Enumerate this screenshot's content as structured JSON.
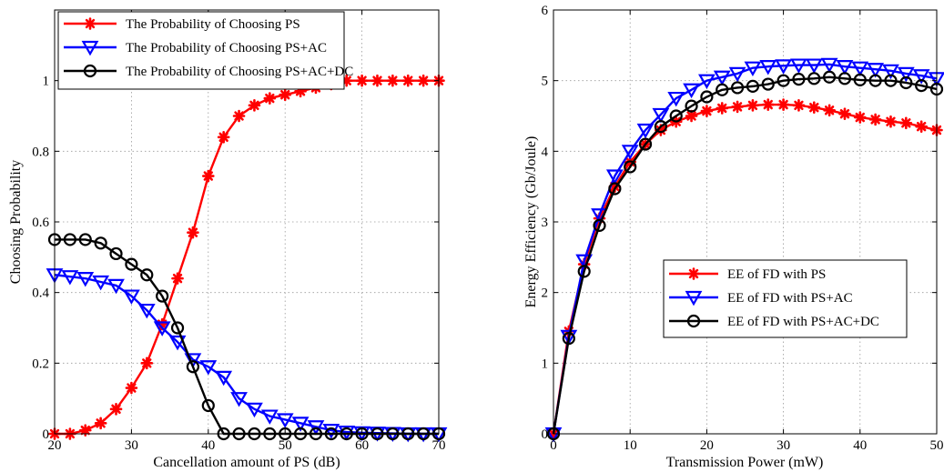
{
  "chart_data": [
    {
      "type": "line",
      "title": "",
      "xlabel": "Cancellation amount of PS (dB)",
      "ylabel": "Choosing Probability",
      "xlim": [
        20,
        70
      ],
      "ylim": [
        0,
        1.2
      ],
      "xticks": [
        20,
        30,
        40,
        50,
        60,
        70
      ],
      "xtick_labels": [
        "20",
        "30",
        "40",
        "50",
        "60",
        "70"
      ],
      "yticks": [
        0,
        0.2,
        0.4,
        0.6,
        0.8,
        1
      ],
      "ytick_labels": [
        "0",
        "0.2",
        "0.4",
        "0.6",
        "0.8",
        "1"
      ],
      "grid": true,
      "legend_position": "top-left",
      "x": [
        20,
        22,
        24,
        26,
        28,
        30,
        32,
        34,
        36,
        38,
        40,
        42,
        44,
        46,
        48,
        50,
        52,
        54,
        56,
        58,
        60,
        62,
        64,
        66,
        68,
        70
      ],
      "series": [
        {
          "name": "The Probability of Choosing PS",
          "color": "#ff0000",
          "marker": "asterisk",
          "values": [
            0,
            0,
            0.01,
            0.03,
            0.07,
            0.13,
            0.2,
            0.31,
            0.44,
            0.57,
            0.73,
            0.84,
            0.9,
            0.93,
            0.95,
            0.96,
            0.97,
            0.98,
            0.99,
            1,
            1,
            1,
            1,
            1,
            1,
            1
          ]
        },
        {
          "name": "The Probability of Choosing PS+AC",
          "color": "#0000ff",
          "marker": "triangle-down",
          "values": [
            0.45,
            0.445,
            0.44,
            0.43,
            0.42,
            0.39,
            0.35,
            0.3,
            0.26,
            0.21,
            0.19,
            0.16,
            0.1,
            0.07,
            0.05,
            0.04,
            0.03,
            0.02,
            0.01,
            0.005,
            0.003,
            0.002,
            0.001,
            0,
            0,
            0
          ]
        },
        {
          "name": "The Probability of Choosing PS+AC+DC",
          "color": "#000000",
          "marker": "circle",
          "values": [
            0.55,
            0.55,
            0.55,
            0.54,
            0.51,
            0.48,
            0.45,
            0.39,
            0.3,
            0.19,
            0.08,
            0,
            0,
            0,
            0,
            0,
            0,
            0,
            0,
            0,
            0,
            0,
            0,
            0,
            0,
            0
          ]
        }
      ]
    },
    {
      "type": "line",
      "title": "",
      "xlabel": "Transmission Power (mW)",
      "ylabel": "Energy Efficiency (Gb/Joule)",
      "xlim": [
        0,
        50
      ],
      "ylim": [
        0,
        6
      ],
      "xticks": [
        0,
        10,
        20,
        30,
        40,
        50
      ],
      "xtick_labels": [
        "0",
        "10",
        "20",
        "30",
        "40",
        "50"
      ],
      "yticks": [
        0,
        1,
        2,
        3,
        4,
        5,
        6
      ],
      "ytick_labels": [
        "0",
        "1",
        "2",
        "3",
        "4",
        "5",
        "6"
      ],
      "grid": true,
      "legend_position": "center-right",
      "x": [
        0,
        2,
        4,
        6,
        8,
        10,
        12,
        14,
        16,
        18,
        20,
        22,
        24,
        26,
        28,
        30,
        32,
        34,
        36,
        38,
        40,
        42,
        44,
        46,
        48,
        50
      ],
      "series": [
        {
          "name": "EE of FD with PS",
          "color": "#ff0000",
          "marker": "asterisk",
          "values": [
            0,
            1.45,
            2.4,
            3.05,
            3.5,
            3.85,
            4.1,
            4.3,
            4.42,
            4.5,
            4.57,
            4.61,
            4.63,
            4.65,
            4.66,
            4.66,
            4.65,
            4.62,
            4.58,
            4.53,
            4.48,
            4.45,
            4.42,
            4.4,
            4.35,
            4.3
          ]
        },
        {
          "name": "EE of FD with PS+AC",
          "color": "#0000ff",
          "marker": "triangle-down",
          "values": [
            0,
            1.38,
            2.45,
            3.1,
            3.65,
            4.0,
            4.3,
            4.52,
            4.75,
            4.87,
            5.0,
            5.05,
            5.1,
            5.18,
            5.2,
            5.21,
            5.22,
            5.22,
            5.23,
            5.2,
            5.18,
            5.16,
            5.14,
            5.1,
            5.07,
            5.03
          ]
        },
        {
          "name": "EE of FD with PS+AC+DC",
          "color": "#000000",
          "marker": "circle",
          "values": [
            0,
            1.35,
            2.3,
            2.95,
            3.47,
            3.78,
            4.1,
            4.35,
            4.5,
            4.64,
            4.77,
            4.87,
            4.9,
            4.92,
            4.95,
            5.0,
            5.02,
            5.03,
            5.05,
            5.03,
            5.01,
            5.0,
            5.0,
            4.97,
            4.93,
            4.88
          ]
        }
      ]
    }
  ]
}
